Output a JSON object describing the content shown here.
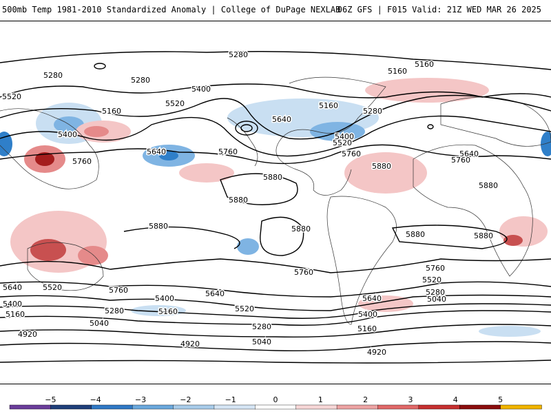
{
  "header": {
    "left_title": "500mb Temp 1981-2010 Standardized Anomaly | College of DuPage NEXLAB",
    "right_title": "06Z GFS | F015 Valid: 21Z WED MAR 26 2025"
  },
  "map": {
    "contour_labels": [
      "5280",
      "5280",
      "5280",
      "5520",
      "5160",
      "5520",
      "5400",
      "5400",
      "5160",
      "5160",
      "5160",
      "5280",
      "5640",
      "5520",
      "5400",
      "5640",
      "5760",
      "5760",
      "5760",
      "5880",
      "5880",
      "5880",
      "5880",
      "5880",
      "5880",
      "5640",
      "5760",
      "5880",
      "5880",
      "5760",
      "5640",
      "5520",
      "5400",
      "5160",
      "4920",
      "5640",
      "5520",
      "5760",
      "5400",
      "5280",
      "5160",
      "5520",
      "5040",
      "5280",
      "4920",
      "5040",
      "5640",
      "5400",
      "5160",
      "5280",
      "5040",
      "4920",
      "5760",
      "5520",
      "5280",
      "5040"
    ],
    "colors": {
      "strong_warm": "#a51d1d",
      "warm": "#e58a8a",
      "light_warm": "#f4c6c6",
      "light_cool": "#c9dff2",
      "cool": "#7fb4e3",
      "strong_cool": "#2f7fc9",
      "contour": "#000000"
    }
  },
  "colorbar": {
    "tick_labels": [
      "−5",
      "−4",
      "−3",
      "−2",
      "−1",
      "0",
      "1",
      "2",
      "3",
      "4",
      "5"
    ],
    "colors": [
      "#6a3d9a",
      "#1f3f7a",
      "#2f78c4",
      "#6aa8dc",
      "#a8cbe9",
      "#d5e5f4",
      "#ffffff",
      "#f6d6d6",
      "#eca3a3",
      "#e06868",
      "#c53030",
      "#8a0d0d",
      "#f0b400"
    ]
  }
}
